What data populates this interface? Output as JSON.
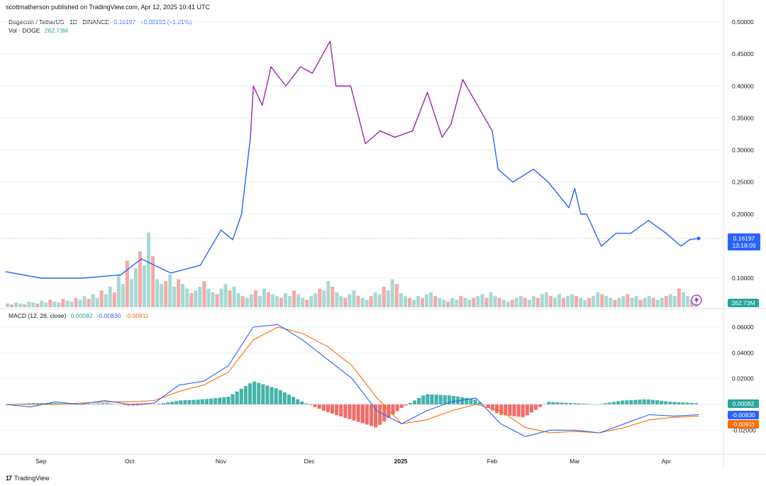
{
  "header": {
    "published": "scottmatherson published on TradingView.com, Apr 12, 2025 10:41 UTC"
  },
  "legend": {
    "symbol": "Dogecoin / TetherUS · 1D · BINANCE",
    "price": "0.16197",
    "change": "+0.00193 (+1.21%)",
    "vol_label": "Vol · DOGE",
    "vol_value": "262.73M"
  },
  "macd_legend": {
    "label": "MACD (12, 26, close)",
    "hist": "0.00082",
    "macd": "-0.00830",
    "signal": "-0.00911"
  },
  "footer": {
    "logo": "17",
    "brand": "TradingView"
  },
  "price_badge": {
    "price": "0.16197",
    "countdown": "13:18:09"
  },
  "vol_badge": "262.73M",
  "macd_badges": {
    "hist": "0.00082",
    "macd": "-0.00830",
    "signal": "-0.00911"
  },
  "colors": {
    "up": "#26a69a",
    "down": "#ef5350",
    "price_line_early": "#2962ff",
    "price_line_late": "#9c27b0",
    "macd": "#2962ff",
    "signal": "#ff6d00"
  },
  "chart_data": [
    {
      "type": "line",
      "x_tick_labels": [
        "Sep",
        "Oct",
        "Nov",
        "Dec",
        "2025",
        "Feb",
        "Mar",
        "Apr"
      ],
      "y_tick_labels": [
        "0.50000",
        "0.45000",
        "0.40000",
        "0.35000",
        "0.30000",
        "0.25000",
        "0.20000",
        "0.10000"
      ],
      "ylim": [
        0.06,
        0.5
      ],
      "x_dates": [
        "2024-08-20",
        "2024-09-01",
        "2024-09-15",
        "2024-09-28",
        "2024-10-05",
        "2024-10-15",
        "2024-10-25",
        "2024-11-01",
        "2024-11-05",
        "2024-11-08",
        "2024-11-11",
        "2024-11-12",
        "2024-11-15",
        "2024-11-18",
        "2024-11-23",
        "2024-11-28",
        "2024-12-02",
        "2024-12-08",
        "2024-12-10",
        "2024-12-15",
        "2024-12-20",
        "2024-12-25",
        "2024-12-30",
        "2025-01-05",
        "2025-01-10",
        "2025-01-15",
        "2025-01-18",
        "2025-01-22",
        "2025-01-27",
        "2025-02-01",
        "2025-02-03",
        "2025-02-08",
        "2025-02-15",
        "2025-02-20",
        "2025-02-27",
        "2025-03-01",
        "2025-03-03",
        "2025-03-05",
        "2025-03-10",
        "2025-03-15",
        "2025-03-20",
        "2025-03-26",
        "2025-04-01",
        "2025-04-06",
        "2025-04-09",
        "2025-04-12"
      ],
      "values": [
        0.11,
        0.1,
        0.1,
        0.105,
        0.13,
        0.108,
        0.12,
        0.175,
        0.16,
        0.2,
        0.32,
        0.4,
        0.37,
        0.43,
        0.4,
        0.43,
        0.42,
        0.47,
        0.4,
        0.4,
        0.31,
        0.33,
        0.32,
        0.33,
        0.39,
        0.32,
        0.34,
        0.41,
        0.37,
        0.33,
        0.27,
        0.25,
        0.27,
        0.25,
        0.21,
        0.24,
        0.2,
        0.2,
        0.15,
        0.17,
        0.17,
        0.19,
        0.17,
        0.15,
        0.16,
        0.162
      ],
      "current_price": 0.16197
    },
    {
      "type": "bar",
      "title": "Vol · DOGE",
      "values": [
        4,
        3,
        5,
        4,
        3,
        6,
        5,
        4,
        7,
        5,
        8,
        6,
        5,
        9,
        7,
        6,
        10,
        8,
        12,
        9,
        14,
        10,
        18,
        14,
        22,
        16,
        35,
        25,
        50,
        30,
        42,
        60,
        45,
        80,
        55,
        30,
        25,
        28,
        35,
        22,
        30,
        25,
        20,
        15,
        18,
        22,
        28,
        20,
        16,
        14,
        20,
        25,
        18,
        22,
        15,
        12,
        10,
        14,
        18,
        12,
        20,
        16,
        14,
        12,
        10,
        15,
        12,
        18,
        14,
        10,
        8,
        12,
        15,
        20,
        18,
        28,
        22,
        16,
        12,
        10,
        14,
        18,
        12,
        10,
        8,
        12,
        16,
        14,
        22,
        18,
        30,
        25,
        15,
        12,
        10,
        8,
        12,
        10,
        14,
        16,
        12,
        10,
        8,
        6,
        10,
        8,
        12,
        10,
        8,
        10,
        12,
        14,
        10,
        16,
        12,
        10,
        8,
        6,
        8,
        10,
        12,
        10,
        8,
        12,
        10,
        14,
        16,
        12,
        10,
        14,
        10,
        12,
        14,
        12,
        10,
        8,
        10,
        12,
        16,
        14,
        12,
        10,
        8,
        10,
        12,
        14,
        10,
        12,
        8,
        10,
        12,
        10,
        8,
        10,
        12,
        14,
        12,
        20,
        16,
        12,
        8,
        10
      ],
      "max_value": 80
    },
    {
      "type": "line",
      "title": "MACD (12, 26, close)",
      "y_tick_labels": [
        "0.06000",
        "0.04000",
        "0.02000",
        "-0.02000"
      ],
      "ylim": [
        -0.03,
        0.065
      ],
      "macd": [
        0,
        -0.002,
        0.002,
        0,
        0.003,
        0,
        0.001,
        0.015,
        0.018,
        0.03,
        0.06,
        0.062,
        0.05,
        0.035,
        0.02,
        -0.005,
        -0.015,
        -0.005,
        0.002,
        0.005,
        -0.015,
        -0.025,
        -0.02,
        -0.02,
        -0.022,
        -0.015,
        -0.008,
        -0.009,
        -0.008
      ],
      "signal": [
        0,
        0,
        0,
        0.001,
        0.002,
        0.002,
        0.003,
        0.01,
        0.015,
        0.025,
        0.05,
        0.06,
        0.055,
        0.045,
        0.03,
        0.005,
        -0.015,
        -0.012,
        -0.005,
        0,
        -0.005,
        -0.018,
        -0.022,
        -0.021,
        -0.022,
        -0.018,
        -0.012,
        -0.01,
        -0.009
      ],
      "histogram": [
        0,
        0.001,
        0.001,
        0,
        0.001,
        -0.001,
        0,
        0.003,
        0.004,
        0.006,
        0.018,
        0.012,
        0.002,
        -0.006,
        -0.012,
        -0.018,
        -0.003,
        0.008,
        0.007,
        0.004,
        -0.008,
        -0.01,
        0.002,
        0.001,
        0,
        0.003,
        0.004,
        0.002,
        0.001
      ]
    }
  ]
}
